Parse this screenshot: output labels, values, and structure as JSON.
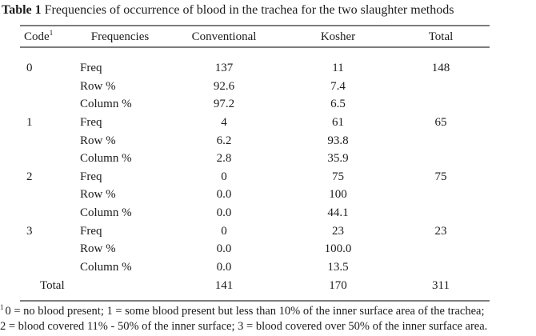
{
  "title": {
    "label": "Table 1",
    "text": " Frequencies of occurrence of blood in the trachea for the two slaughter methods"
  },
  "table": {
    "headers": [
      "Code",
      "Frequencies",
      "Conventional",
      "Kosher",
      "Total"
    ],
    "code_superscript": "1",
    "rows": [
      [
        "0",
        "Freq",
        "137",
        "11",
        "148"
      ],
      [
        "",
        "Row %",
        "92.6",
        "7.4",
        ""
      ],
      [
        "",
        "Column %",
        "97.2",
        "6.5",
        ""
      ],
      [
        "1",
        "Freq",
        "4",
        "61",
        "65"
      ],
      [
        "",
        "Row %",
        "6.2",
        "93.8",
        ""
      ],
      [
        "",
        "Column %",
        "2.8",
        "35.9",
        ""
      ],
      [
        "2",
        "Freq",
        "0",
        "75",
        "75"
      ],
      [
        "",
        "Row %",
        "0.0",
        "100",
        ""
      ],
      [
        "",
        "Column %",
        "0.0",
        "44.1",
        ""
      ],
      [
        "3",
        "Freq",
        "0",
        "23",
        "23"
      ],
      [
        "",
        "Row %",
        "0.0",
        "100.0",
        ""
      ],
      [
        "",
        "Column %",
        "0.0",
        "13.5",
        ""
      ],
      [
        "Total",
        "",
        "141",
        "170",
        "311"
      ]
    ]
  },
  "footnotes": {
    "superscript": "1",
    "line1": "0 = no blood present; 1 = some blood present but less than 10% of the inner surface area of the trachea;",
    "line2": "2 = blood covered 11% - 50% of the inner surface; 3 = blood covered over 50% of the inner surface area."
  },
  "colors": {
    "rule": "#7d7d7d",
    "text": "#1c1c1c",
    "background": "#ffffff"
  }
}
